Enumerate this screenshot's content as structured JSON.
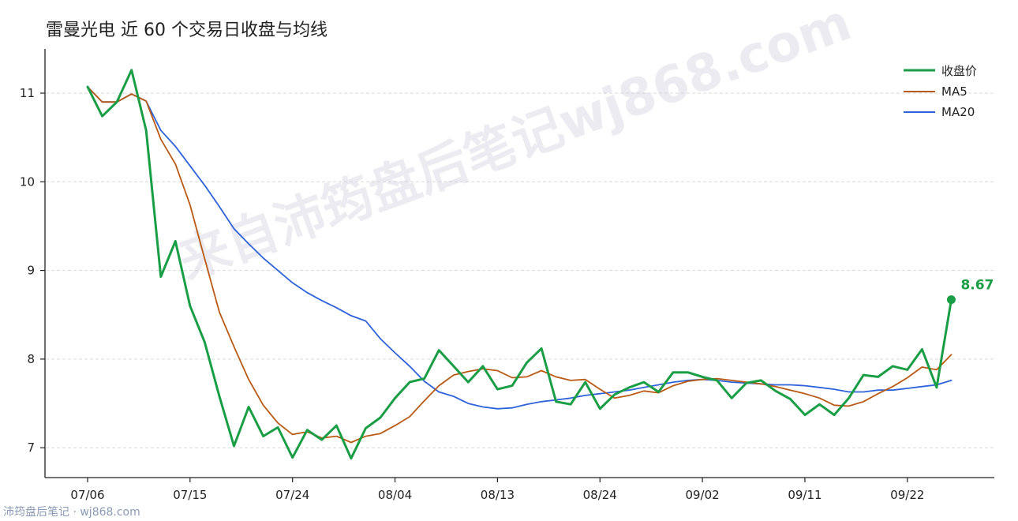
{
  "chart_data": {
    "type": "line",
    "title": "雷曼光电 近 60 个交易日收盘与均线",
    "xlabel": "",
    "ylabel": "",
    "ylim": [
      6.65,
      11.5
    ],
    "y_ticks": [
      7,
      8,
      9,
      10,
      11
    ],
    "x_tick_labels": [
      "07/06",
      "07/15",
      "07/24",
      "08/04",
      "08/13",
      "08/24",
      "09/02",
      "09/11",
      "09/22"
    ],
    "x_tick_positions": [
      0,
      7,
      14,
      21,
      28,
      35,
      42,
      49,
      56
    ],
    "grid": "horizontal dashed",
    "legend_position": "top-right",
    "series": [
      {
        "name": "收盘价",
        "color": "#1a9e45",
        "values": [
          11.07,
          10.74,
          10.9,
          11.26,
          10.58,
          8.93,
          9.33,
          8.6,
          8.19,
          7.58,
          7.02,
          7.46,
          7.13,
          7.23,
          6.89,
          7.2,
          7.09,
          7.25,
          6.88,
          7.22,
          7.34,
          7.56,
          7.74,
          7.78,
          8.1,
          7.92,
          7.74,
          7.92,
          7.66,
          7.7,
          7.96,
          8.12,
          7.52,
          7.49,
          7.74,
          7.44,
          7.6,
          7.68,
          7.74,
          7.63,
          7.85,
          7.85,
          7.8,
          7.76,
          7.56,
          7.73,
          7.76,
          7.64,
          7.55,
          7.37,
          7.49,
          7.37,
          7.56,
          7.82,
          7.8,
          7.92,
          7.88,
          8.11,
          7.68,
          8.67
        ]
      },
      {
        "name": "MA5",
        "color": "#b85a14",
        "values": [
          11.07,
          10.9,
          10.9,
          10.99,
          10.91,
          10.48,
          10.2,
          9.74,
          9.13,
          8.53,
          8.14,
          7.77,
          7.48,
          7.28,
          7.15,
          7.18,
          7.11,
          7.13,
          7.06,
          7.13,
          7.16,
          7.25,
          7.35,
          7.53,
          7.7,
          7.82,
          7.86,
          7.89,
          7.87,
          7.79,
          7.8,
          7.87,
          7.8,
          7.76,
          7.77,
          7.66,
          7.56,
          7.59,
          7.64,
          7.62,
          7.7,
          7.75,
          7.77,
          7.78,
          7.76,
          7.74,
          7.72,
          7.69,
          7.65,
          7.61,
          7.56,
          7.48,
          7.47,
          7.52,
          7.61,
          7.69,
          7.79,
          7.91,
          7.88,
          8.05
        ]
      },
      {
        "name": "MA20",
        "color": "#2e62d9",
        "values": [
          11.07,
          10.9,
          10.9,
          10.99,
          10.91,
          10.58,
          10.4,
          10.18,
          9.96,
          9.72,
          9.47,
          9.3,
          9.14,
          9.0,
          8.86,
          8.75,
          8.66,
          8.58,
          8.49,
          8.43,
          8.23,
          8.07,
          7.92,
          7.75,
          7.63,
          7.58,
          7.5,
          7.46,
          7.44,
          7.45,
          7.49,
          7.52,
          7.54,
          7.56,
          7.59,
          7.61,
          7.63,
          7.65,
          7.68,
          7.71,
          7.74,
          7.76,
          7.77,
          7.76,
          7.74,
          7.73,
          7.72,
          7.71,
          7.71,
          7.7,
          7.68,
          7.66,
          7.63,
          7.63,
          7.65,
          7.65,
          7.67,
          7.69,
          7.71,
          7.76
        ]
      }
    ],
    "annotations": [
      {
        "text": "8.67",
        "series": "收盘价",
        "index": 59,
        "color": "#1a9e45"
      }
    ]
  },
  "watermark": "来自沛筠盘后笔记wj868.com",
  "footer": "沛筠盘后笔记 · wj868.com"
}
